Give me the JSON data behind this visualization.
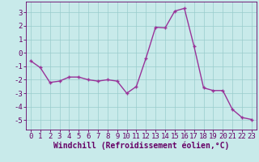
{
  "x": [
    0,
    1,
    2,
    3,
    4,
    5,
    6,
    7,
    8,
    9,
    10,
    11,
    12,
    13,
    14,
    15,
    16,
    17,
    18,
    19,
    20,
    21,
    22,
    23
  ],
  "y": [
    -0.6,
    -1.1,
    -2.2,
    -2.1,
    -1.8,
    -1.8,
    -2.0,
    -2.1,
    -2.0,
    -2.1,
    -3.0,
    -2.5,
    -0.4,
    1.9,
    1.85,
    3.1,
    3.3,
    0.5,
    -2.6,
    -2.8,
    -2.8,
    -4.2,
    -4.8,
    -4.95
  ],
  "line_color": "#993399",
  "marker": "+",
  "bg_color": "#c8eaea",
  "grid_color": "#99cccc",
  "xlabel": "Windchill (Refroidissement éolien,°C)",
  "xlim": [
    -0.5,
    23.5
  ],
  "ylim": [
    -5.7,
    3.8
  ],
  "yticks": [
    -5,
    -4,
    -3,
    -2,
    -1,
    0,
    1,
    2,
    3
  ],
  "xticks": [
    0,
    1,
    2,
    3,
    4,
    5,
    6,
    7,
    8,
    9,
    10,
    11,
    12,
    13,
    14,
    15,
    16,
    17,
    18,
    19,
    20,
    21,
    22,
    23
  ],
  "xlabel_color": "#660066",
  "tick_color": "#660066",
  "axis_color": "#660066",
  "font_family": "monospace",
  "tick_fontsize": 6.5,
  "xlabel_fontsize": 7
}
